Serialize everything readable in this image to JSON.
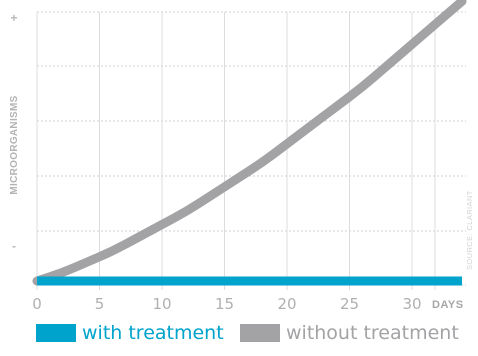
{
  "chart_data": {
    "type": "line",
    "x_tick_labels": [
      "0",
      "5",
      "10",
      "15",
      "20",
      "25",
      "30"
    ],
    "x_unit": "DAYS",
    "xlim": [
      0,
      34
    ],
    "ylabel": "MICROORGANISMS",
    "y_top_mark": "+",
    "y_bottom_mark": "-",
    "ylim": [
      0,
      1
    ],
    "grid": true,
    "source": "SOURCE: CLARIANT",
    "legend_position": "bottom",
    "series": [
      {
        "name": "with treatment",
        "color": "#00a3cc",
        "x": [
          0,
          34
        ],
        "y": [
          0,
          0
        ]
      },
      {
        "name": "without treatment",
        "color": "#a3a3a6",
        "x": [
          0,
          2,
          4,
          6,
          8,
          10,
          12,
          14,
          16,
          18,
          20,
          22,
          24,
          26,
          28,
          30,
          32,
          34
        ],
        "y": [
          0,
          0.03,
          0.07,
          0.11,
          0.16,
          0.21,
          0.26,
          0.32,
          0.38,
          0.44,
          0.51,
          0.58,
          0.65,
          0.72,
          0.8,
          0.88,
          0.96,
          1.04
        ]
      }
    ]
  }
}
